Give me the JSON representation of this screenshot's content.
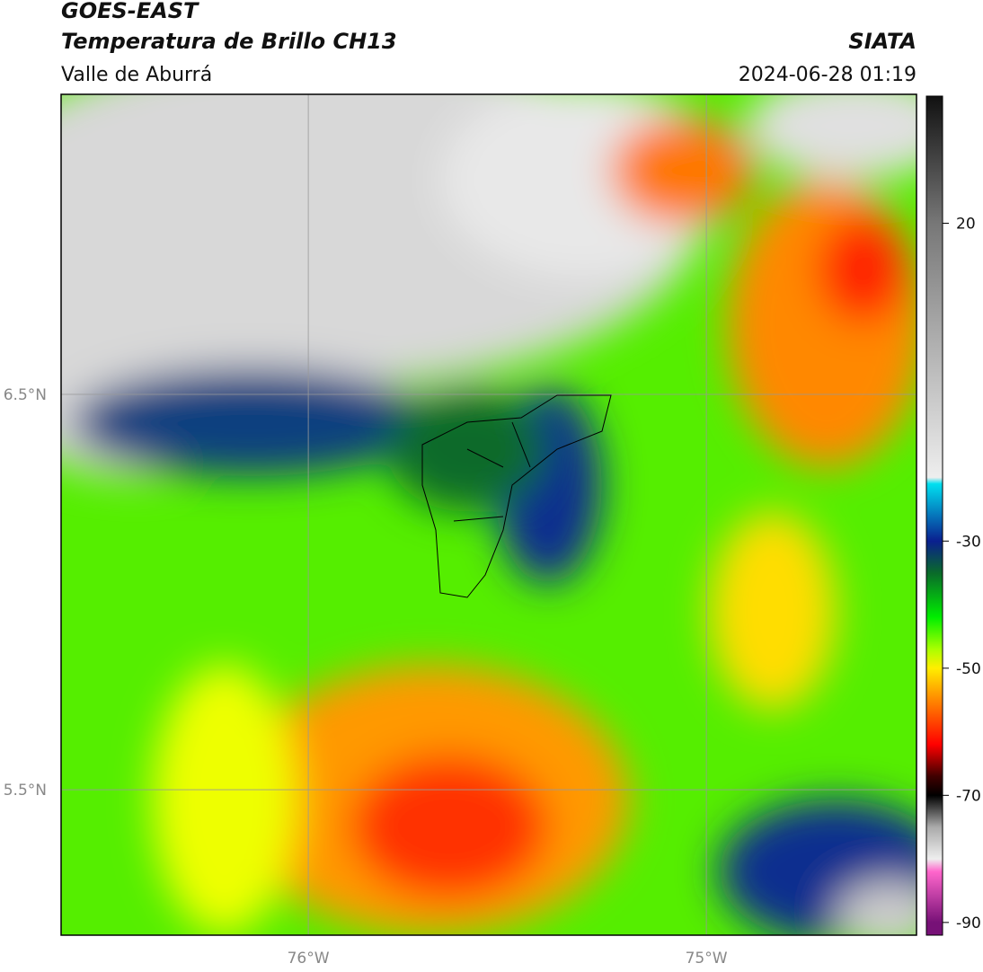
{
  "header": {
    "title": "GOES-EAST",
    "subtitle": "Temperatura de Brillo CH13",
    "region": "Valle de Aburrá",
    "source": "SIATA",
    "datetime": "2024-06-28 01:19"
  },
  "map": {
    "latlim": [
      5.132,
      7.259
    ],
    "lonlim": [
      -76.621,
      -74.472
    ],
    "latticks": [
      {
        "value": 6.5,
        "label": "6.5°N"
      },
      {
        "value": 5.5,
        "label": "5.5°N"
      }
    ],
    "lonticks": [
      {
        "value": -76,
        "label": "76°W"
      },
      {
        "value": -75,
        "label": "75°W"
      }
    ],
    "grid": true
  },
  "colorbar": {
    "lim": [
      -92,
      40
    ],
    "ticks": [
      20,
      -30,
      -50,
      -70,
      -90
    ],
    "stops": [
      {
        "value": 40,
        "color": "#111111"
      },
      {
        "value": 20,
        "color": "#777777"
      },
      {
        "value": -20,
        "color": "#eeeeee"
      },
      {
        "value": -21,
        "color": "#00e0f0"
      },
      {
        "value": -30,
        "color": "#0a1f8f"
      },
      {
        "value": -35,
        "color": "#0a6a2a"
      },
      {
        "value": -42,
        "color": "#00ee00"
      },
      {
        "value": -47,
        "color": "#aaff00"
      },
      {
        "value": -50,
        "color": "#ffee00"
      },
      {
        "value": -55,
        "color": "#ff8800"
      },
      {
        "value": -62,
        "color": "#ff0000"
      },
      {
        "value": -67,
        "color": "#400000"
      },
      {
        "value": -70,
        "color": "#000000"
      },
      {
        "value": -75,
        "color": "#aaaaaa"
      },
      {
        "value": -80,
        "color": "#eeeeee"
      },
      {
        "value": -82,
        "color": "#ff66cc"
      },
      {
        "value": -90,
        "color": "#771177"
      }
    ]
  }
}
